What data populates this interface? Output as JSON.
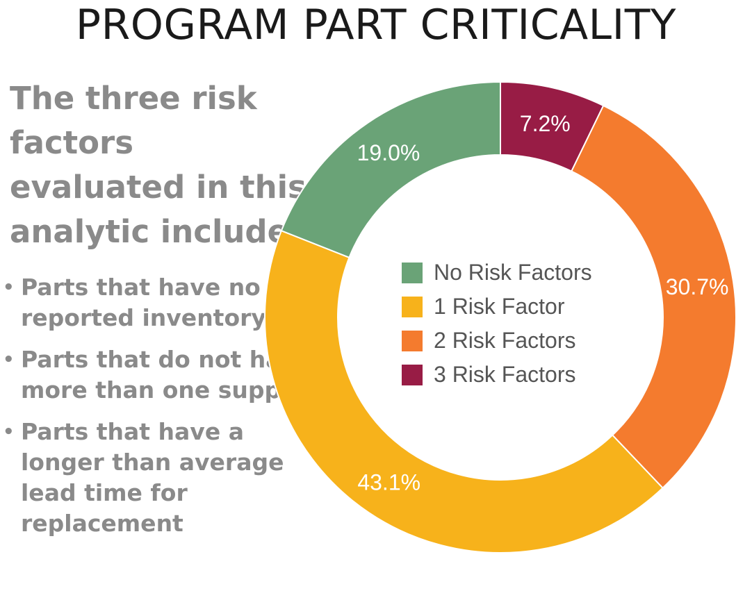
{
  "title": "PROGRAM PART CRITICALITY",
  "intro": "The three risk factors evaluated in this analytic include:",
  "bullets": [
    "Parts that have no reported inventory",
    "Parts that do not have more than one supplier",
    "Parts that have a longer than average lead time for replacement"
  ],
  "chart_data": {
    "type": "pie",
    "donut": true,
    "categories": [
      "No Risk Factors",
      "1 Risk Factor",
      "2 Risk Factors",
      "3 Risk Factors"
    ],
    "values": [
      19.0,
      43.1,
      30.7,
      7.2
    ],
    "data_labels": [
      "19.0%",
      "43.1%",
      "30.7%",
      "7.2%"
    ],
    "colors": [
      "#6aa377",
      "#f7b21b",
      "#f47b2e",
      "#981c45"
    ],
    "legend_position": "center"
  }
}
